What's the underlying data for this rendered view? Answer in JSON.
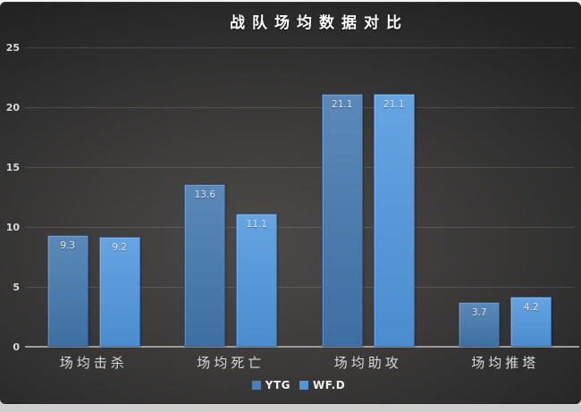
{
  "title": "战队场均数据对比",
  "chart_data": {
    "type": "bar",
    "title": "战队场均数据对比",
    "categories": [
      "场均击杀",
      "场均死亡",
      "场均助攻",
      "场均推塔"
    ],
    "series": [
      {
        "name": "YTG",
        "values": [
          9.3,
          13.6,
          21.1,
          3.7
        ],
        "color_top": "#5a89b9",
        "color_bottom": "#3f6fa2",
        "swatch": "#4a7fb7"
      },
      {
        "name": "WF.D",
        "values": [
          9.2,
          11.1,
          21.1,
          4.2
        ],
        "color_top": "#66a4e2",
        "color_bottom": "#4a8cce",
        "swatch": "#5295d8"
      }
    ],
    "ylim": [
      0,
      25
    ],
    "yticks": [
      0,
      5,
      10,
      15,
      20,
      25
    ],
    "grid": true,
    "data_labels": true,
    "data_label_format": "one-decimal",
    "legend_position": "bottom",
    "xlabel": "",
    "ylabel": ""
  },
  "colors": {
    "background_dark": "#3c3b3a",
    "grid": "#5a5a5a",
    "axis": "#9c9c9c",
    "text_light": "#d9d9d9",
    "title_text": "#ffffff"
  }
}
